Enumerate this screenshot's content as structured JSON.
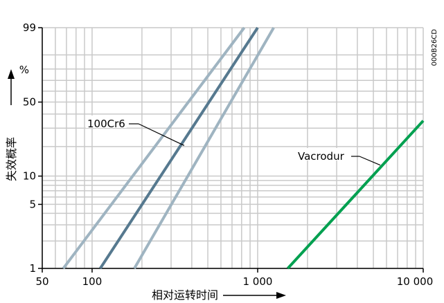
{
  "chart_data": {
    "type": "line",
    "title": "",
    "xlabel": "相对运转时间",
    "ylabel": "失效概率",
    "x_scale": "log",
    "y_scale": "weibull-probability",
    "xlim": [
      50,
      10000
    ],
    "ylim": [
      1,
      99
    ],
    "x_tick_labels": [
      {
        "value": 50,
        "label": "50"
      },
      {
        "value": 100,
        "label": "100"
      },
      {
        "value": 1000,
        "label": "1 000"
      },
      {
        "value": 10000,
        "label": "10 000"
      }
    ],
    "y_tick_labels": [
      {
        "value": 1,
        "label": "1"
      },
      {
        "value": 5,
        "label": "5"
      },
      {
        "value": 10,
        "label": "10"
      },
      {
        "value": 50,
        "label": "50"
      },
      {
        "value": 99,
        "label": "99"
      }
    ],
    "y_unit": "%",
    "grid": true,
    "x_grid_values": [
      50,
      60,
      70,
      80,
      90,
      100,
      200,
      300,
      400,
      500,
      600,
      700,
      800,
      900,
      1000,
      2000,
      3000,
      4000,
      5000,
      6000,
      7000,
      8000,
      9000,
      10000
    ],
    "y_grid_values": [
      1,
      2,
      3,
      4,
      5,
      6,
      7,
      8,
      9,
      10,
      20,
      30,
      40,
      50,
      60,
      70,
      80,
      90,
      99
    ],
    "document_code": "000B26CD",
    "series": [
      {
        "name": "100Cr6",
        "role": "median",
        "color": "#56798f",
        "points": [
          [
            112,
            1
          ],
          [
            1000,
            99
          ]
        ]
      },
      {
        "name": "",
        "role": "confidence-bound",
        "color": "#9fb4c1",
        "points": [
          [
            67,
            1
          ],
          [
            830,
            99
          ]
        ]
      },
      {
        "name": "",
        "role": "confidence-bound",
        "color": "#9fb4c1",
        "points": [
          [
            180,
            1
          ],
          [
            1250,
            99
          ]
        ]
      },
      {
        "name": "Vacrodur",
        "role": "median",
        "color": "#00a050",
        "points": [
          [
            1520,
            1
          ],
          [
            10000,
            35
          ]
        ]
      }
    ],
    "annotations": [
      {
        "text": "100Cr6",
        "target_series": "100Cr6",
        "position": "left"
      },
      {
        "text": "Vacrodur",
        "target_series": "Vacrodur",
        "position": "left"
      }
    ]
  }
}
